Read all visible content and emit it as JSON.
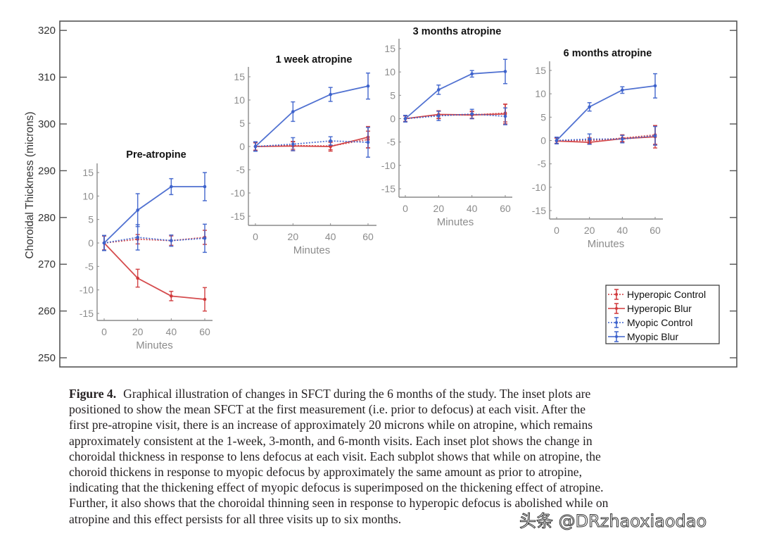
{
  "chart_data": {
    "type": "line",
    "main_axis": {
      "ylabel": "Choroidal Thickness (microns)",
      "ylim": [
        250,
        320
      ],
      "yticks": [
        "250",
        "260",
        "270",
        "280",
        "290",
        "300",
        "310",
        "320"
      ]
    },
    "legend": {
      "placement": "bottom-right",
      "entries": [
        "Hyperopic Control",
        "Hyperopic Blur",
        "Myopic Control",
        "Myopic Blur"
      ]
    },
    "colors": {
      "red": "#d0393b",
      "blue": "#3d62cc",
      "axis": "#8a8a8a",
      "frame": "#555555"
    },
    "panels": [
      {
        "title": "Pre-atropine",
        "baseline_sfct": 274,
        "xlabel": "Minutes",
        "x": [
          0,
          20,
          40,
          60
        ],
        "xticks": [
          "0",
          "20",
          "40",
          "60"
        ],
        "ylim": [
          -17,
          17
        ],
        "yticks": [
          "15",
          "10",
          "5",
          "0",
          "-5",
          "-10",
          "-15"
        ],
        "series": [
          {
            "name": "Hyperopic Control",
            "values": [
              0,
              0.8,
              0.5,
              1.2
            ],
            "err": [
              1.5,
              1.0,
              1.0,
              1.5
            ]
          },
          {
            "name": "Hyperopic Blur",
            "values": [
              0,
              -7.5,
              -11.3,
              -12
            ],
            "err": [
              1.5,
              1.9,
              1.0,
              2.5
            ]
          },
          {
            "name": "Myopic Control",
            "values": [
              0,
              1.2,
              0.5,
              1.0
            ],
            "err": [
              1.6,
              2.7,
              1.2,
              3.0
            ]
          },
          {
            "name": "Myopic Blur",
            "values": [
              0,
              7,
              12,
              12
            ],
            "err": [
              1.6,
              3.5,
              1.7,
              3.0
            ]
          }
        ]
      },
      {
        "title": "1 week atropine",
        "baseline_sfct": 294,
        "xlabel": "Minutes",
        "x": [
          0,
          20,
          40,
          60
        ],
        "xticks": [
          "0",
          "20",
          "40",
          "60"
        ],
        "ylim": [
          -17,
          17
        ],
        "yticks": [
          "15",
          "10",
          "5",
          "0",
          "-5",
          "-10",
          "-15"
        ],
        "series": [
          {
            "name": "Hyperopic Control",
            "values": [
              0,
              0.2,
              0.1,
              1.5
            ],
            "err": [
              0.8,
              0.8,
              0.8,
              1.8
            ]
          },
          {
            "name": "Hyperopic Blur",
            "values": [
              0,
              0.1,
              0,
              2
            ],
            "err": [
              0.8,
              1.0,
              1.0,
              2.3
            ]
          },
          {
            "name": "Myopic Control",
            "values": [
              0,
              0.5,
              1.2,
              0.9
            ],
            "err": [
              1.0,
              1.4,
              0.9,
              3.2
            ]
          },
          {
            "name": "Myopic Blur",
            "values": [
              0,
              7.5,
              11.2,
              13
            ],
            "err": [
              1.0,
              2.1,
              1.5,
              2.8
            ]
          }
        ]
      },
      {
        "title": "3 months atropine",
        "baseline_sfct": 300,
        "xlabel": "Minutes",
        "x": [
          0,
          20,
          40,
          60
        ],
        "xticks": [
          "0",
          "20",
          "40",
          "60"
        ],
        "ylim": [
          -17,
          17
        ],
        "yticks": [
          "15",
          "10",
          "5",
          "0",
          "-5",
          "-10",
          "-15"
        ],
        "series": [
          {
            "name": "Hyperopic Control",
            "values": [
              0,
              0.8,
              0.8,
              1.2
            ],
            "err": [
              0.6,
              0.8,
              0.7,
              1.9
            ]
          },
          {
            "name": "Hyperopic Blur",
            "values": [
              0,
              0.9,
              0.8,
              1.0
            ],
            "err": [
              0.6,
              0.8,
              0.8,
              2.1
            ]
          },
          {
            "name": "Myopic Control",
            "values": [
              0,
              0.6,
              1.0,
              0.5
            ],
            "err": [
              0.7,
              1.0,
              1.0,
              1.8
            ]
          },
          {
            "name": "Myopic Blur",
            "values": [
              0,
              6.2,
              9.6,
              10.1
            ],
            "err": [
              0.7,
              1.0,
              0.7,
              2.6
            ]
          }
        ]
      },
      {
        "title": "6 months atropine",
        "baseline_sfct": 296,
        "xlabel": "Minutes",
        "x": [
          0,
          20,
          40,
          60
        ],
        "xticks": [
          "0",
          "20",
          "40",
          "60"
        ],
        "ylim": [
          -17,
          17
        ],
        "yticks": [
          "15",
          "10",
          "5",
          "0",
          "-5",
          "-10",
          "-15"
        ],
        "series": [
          {
            "name": "Hyperopic Control",
            "values": [
              0,
              0,
              0.5,
              1.2
            ],
            "err": [
              0.6,
              0.6,
              0.7,
              2.0
            ]
          },
          {
            "name": "Hyperopic Blur",
            "values": [
              -0.1,
              -0.4,
              0.4,
              0.8
            ],
            "err": [
              0.6,
              0.4,
              0.8,
              2.4
            ]
          },
          {
            "name": "Myopic Control",
            "values": [
              0,
              0.3,
              0.3,
              1.0
            ],
            "err": [
              0.7,
              1.1,
              0.8,
              2.0
            ]
          },
          {
            "name": "Myopic Blur",
            "values": [
              0,
              7.2,
              10.8,
              11.7
            ],
            "err": [
              0.7,
              0.9,
              0.7,
              2.6
            ]
          }
        ]
      }
    ]
  },
  "caption": {
    "label": "Figure 4.",
    "lines": [
      "Graphical illustration of changes in SFCT during the 6 months of the study. The inset plots are",
      "positioned to show the mean SFCT at the first measurement (i.e. prior to defocus) at each visit. After the",
      "first pre-atropine visit, there is an increase of approximately 20 microns while on atropine, which remains",
      "approximately consistent at the 1-week, 3-month, and 6-month visits. Each inset plot shows the change in",
      "choroidal thickness in response to lens defocus at each visit. Each subplot shows that while on atropine, the",
      "choroid thickens in response to myopic defocus by approximately the same amount as prior to atropine,",
      "indicating that the thickening effect of myopic defocus is superimposed on the thickening effect of atropine.",
      "Further, it also shows that the choroidal thinning seen in response to hyperopic defocus is abolished while on",
      "atropine and this effect persists for all three visits up to six months."
    ]
  },
  "watermark": "头条 @DRzhaoxiaodao"
}
